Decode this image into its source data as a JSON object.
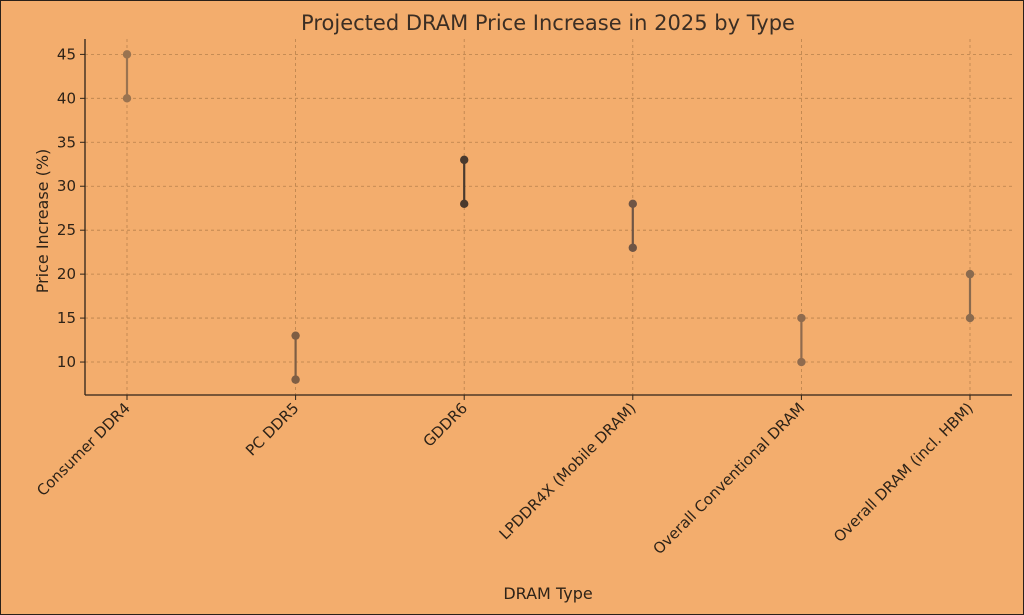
{
  "chart_data": {
    "type": "range",
    "title": "Projected DRAM Price Increase in 2025 by Type",
    "xlabel": "DRAM Type",
    "ylabel": "Price Increase (%)",
    "categories": [
      "Consumer DDR4",
      "PC DDR5",
      "GDDR6",
      "LPDDR4X (Mobile DRAM)",
      "Overall Conventional DRAM",
      "Overall DRAM (incl. HBM)"
    ],
    "low": [
      40,
      8,
      28,
      23,
      10,
      15
    ],
    "high": [
      45,
      13,
      33,
      28,
      15,
      20
    ],
    "yticks": [
      10,
      15,
      20,
      25,
      30,
      35,
      40,
      45
    ],
    "ylim": [
      6.25,
      46.75
    ],
    "grid": true,
    "colors": {
      "background": "#f3ad6d",
      "series": [
        "#9a7350",
        "#7e5e44",
        "#4a3a2e",
        "#6f5545",
        "#8f6b4e",
        "#8a6a4e"
      ]
    }
  }
}
